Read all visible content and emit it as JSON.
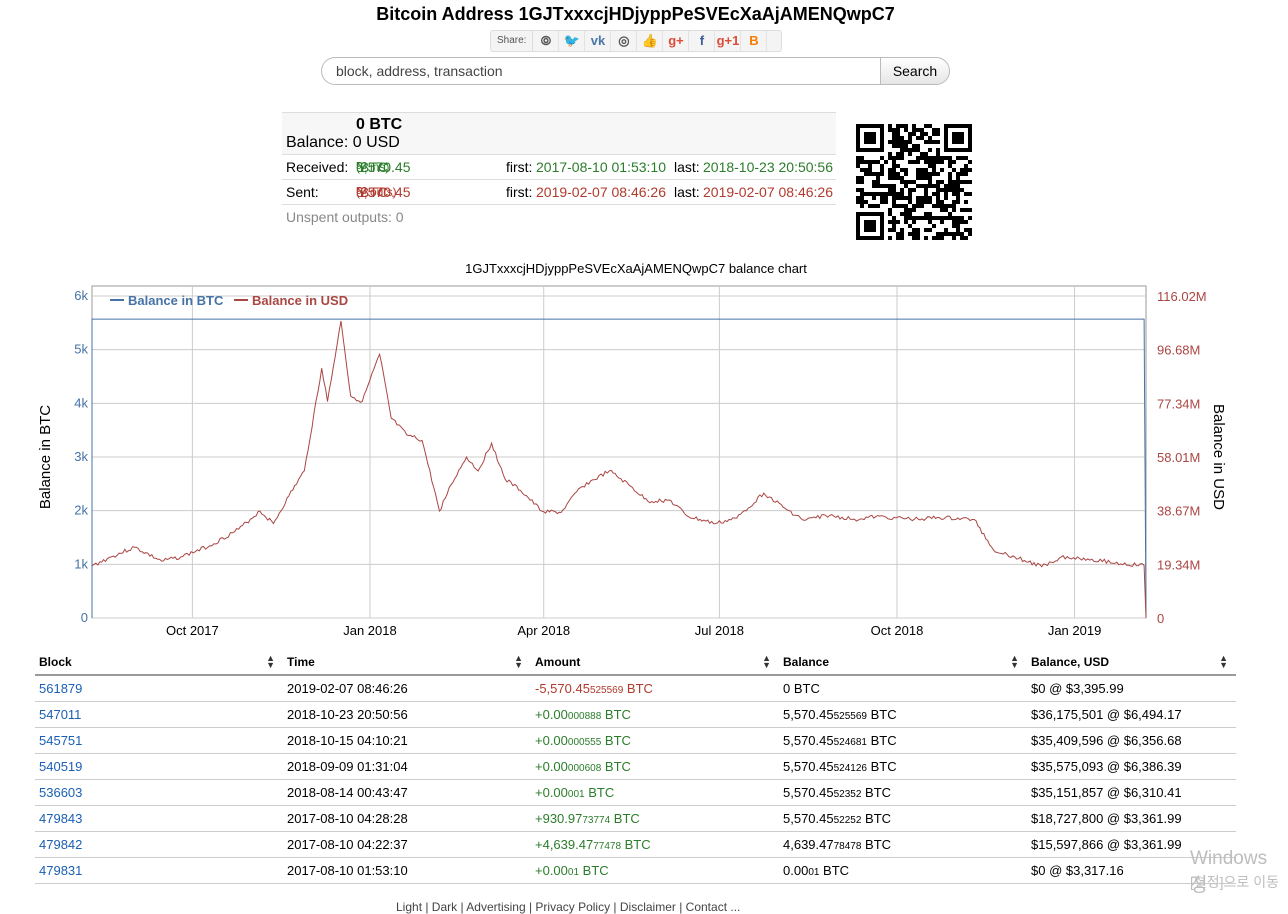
{
  "page": {
    "title": "Bitcoin Address 1GJTxxxcjHDjyppPeSVEcXaAjAMENQwpC7",
    "share_label": "Share:",
    "share_icons": [
      "reddit-icon",
      "twitter-icon",
      "vk-icon",
      "weibo-icon",
      "like-icon",
      "googleplus-icon",
      "facebook-icon",
      "googleplus-one-icon",
      "blogger-icon"
    ],
    "share_glyphs": [
      "⦾",
      "🐦",
      "vk",
      "◎",
      "👍",
      "g+",
      "f",
      "g+1",
      "B"
    ],
    "share_colors": [
      "#555",
      "#1da1f2",
      "#4a76a8",
      "#555",
      "#3b5998",
      "#dd4b39",
      "#3b5998",
      "#dd4b39",
      "#f57d00"
    ]
  },
  "search": {
    "placeholder": "block, address, transaction",
    "button": "Search"
  },
  "summary": {
    "balance_label": "Balance:",
    "balance_btc": "0 BTC",
    "balance_usd": "0 USD",
    "received_label": "Received:",
    "received_main": "5,570.45",
    "received_small": "53",
    "received_unit": " BTC",
    "received_ins": "(7 ins)",
    "received_first_label": "first:",
    "received_first": "2017-08-10 01:53:10",
    "received_last_label": "last:",
    "received_last": "2018-10-23 20:50:56",
    "sent_label": "Sent:",
    "sent_main": "5,570.45",
    "sent_small": "53",
    "sent_unit": " BTC",
    "sent_outs": "(7 outs)",
    "sent_first_label": "first:",
    "sent_first": "2019-02-07 08:46:26",
    "sent_last_label": "last:",
    "sent_last": "2019-02-07 08:46:26",
    "unspent": "Unspent outputs: 0"
  },
  "chart_data": {
    "type": "line",
    "title": "1GJTxxxcjHDjyppPeSVEcXaAjAMENQwpC7 balance chart",
    "ylabel_left": "Balance in BTC",
    "ylabel_right": "Balance in USD",
    "legend": [
      "Balance in BTC",
      "Balance in USD"
    ],
    "legend_position": "top-left",
    "colors": {
      "btc": "#4572a7",
      "usd": "#aa4643"
    },
    "x_ticks": [
      "Oct 2017",
      "Jan 2018",
      "Apr 2018",
      "Jul 2018",
      "Oct 2018",
      "Jan 2019"
    ],
    "x_tick_dates": [
      "2017-10-01",
      "2018-01-01",
      "2018-04-01",
      "2018-07-01",
      "2018-10-01",
      "2019-01-01"
    ],
    "x_range": [
      "2017-08-10",
      "2019-02-07"
    ],
    "y_left_ticks": [
      "0",
      "1k",
      "2k",
      "3k",
      "4k",
      "5k",
      "6k"
    ],
    "y_left_range": [
      0,
      6000
    ],
    "y_right_ticks": [
      "0",
      "19.34M",
      "38.67M",
      "58.01M",
      "77.34M",
      "96.68M",
      "116.02M"
    ],
    "y_right_range": [
      0,
      116020000
    ],
    "grid": true,
    "series": [
      {
        "name": "Balance in BTC",
        "axis": "left",
        "points": [
          [
            "2017-08-10",
            0.0
          ],
          [
            "2017-08-10",
            4639.48
          ],
          [
            "2017-08-10",
            5570.45
          ],
          [
            "2019-02-06",
            5570.45
          ],
          [
            "2019-02-07",
            0
          ]
        ]
      },
      {
        "name": "Balance in USD",
        "axis": "right",
        "points": [
          [
            "2017-08-10",
            18727800
          ],
          [
            "2017-08-20",
            22000000
          ],
          [
            "2017-09-01",
            25500000
          ],
          [
            "2017-09-15",
            20500000
          ],
          [
            "2017-09-25",
            22000000
          ],
          [
            "2017-10-10",
            26000000
          ],
          [
            "2017-10-25",
            32000000
          ],
          [
            "2017-11-05",
            38500000
          ],
          [
            "2017-11-12",
            34000000
          ],
          [
            "2017-11-20",
            44000000
          ],
          [
            "2017-11-28",
            53000000
          ],
          [
            "2017-12-07",
            90000000
          ],
          [
            "2017-12-10",
            78000000
          ],
          [
            "2017-12-17",
            107000000
          ],
          [
            "2017-12-22",
            80000000
          ],
          [
            "2017-12-28",
            78000000
          ],
          [
            "2018-01-06",
            95000000
          ],
          [
            "2018-01-12",
            72000000
          ],
          [
            "2018-01-20",
            66000000
          ],
          [
            "2018-01-28",
            64000000
          ],
          [
            "2018-02-06",
            38500000
          ],
          [
            "2018-02-12",
            48000000
          ],
          [
            "2018-02-20",
            58000000
          ],
          [
            "2018-02-26",
            53000000
          ],
          [
            "2018-03-05",
            63000000
          ],
          [
            "2018-03-12",
            50000000
          ],
          [
            "2018-03-20",
            46000000
          ],
          [
            "2018-03-31",
            38500000
          ],
          [
            "2018-04-10",
            38000000
          ],
          [
            "2018-04-20",
            47000000
          ],
          [
            "2018-05-05",
            53000000
          ],
          [
            "2018-05-15",
            48000000
          ],
          [
            "2018-05-25",
            42000000
          ],
          [
            "2018-06-05",
            42500000
          ],
          [
            "2018-06-15",
            36500000
          ],
          [
            "2018-06-29",
            34000000
          ],
          [
            "2018-07-10",
            36000000
          ],
          [
            "2018-07-24",
            45000000
          ],
          [
            "2018-08-05",
            39000000
          ],
          [
            "2018-08-14",
            35151857
          ],
          [
            "2018-08-25",
            37000000
          ],
          [
            "2018-09-09",
            35575093
          ],
          [
            "2018-09-20",
            36500000
          ],
          [
            "2018-10-10",
            35600000
          ],
          [
            "2018-10-23",
            36175501
          ],
          [
            "2018-11-10",
            35500000
          ],
          [
            "2018-11-20",
            24500000
          ],
          [
            "2018-12-01",
            22000000
          ],
          [
            "2018-12-15",
            18500000
          ],
          [
            "2018-12-25",
            22000000
          ],
          [
            "2019-01-10",
            21200000
          ],
          [
            "2019-01-25",
            19500000
          ],
          [
            "2019-02-06",
            18900000
          ],
          [
            "2019-02-07",
            0
          ]
        ]
      }
    ]
  },
  "table": {
    "headers": [
      "Block",
      "Time",
      "Amount",
      "Balance",
      "Balance, USD"
    ],
    "rows": [
      {
        "block": "561879",
        "time": "2019-02-07 08:46:26",
        "amount_main": "-5,570.45",
        "amount_small": "525569",
        "amount_unit": " BTC",
        "sign": "neg",
        "balance_main": "0 BTC",
        "balance_small": "",
        "balance_unit": "",
        "usd": "$0 @ $3,395.99"
      },
      {
        "block": "547011",
        "time": "2018-10-23 20:50:56",
        "amount_main": "+0.00",
        "amount_small": "000888",
        "amount_unit": " BTC",
        "sign": "pos",
        "balance_main": "5,570.45",
        "balance_small": "525569",
        "balance_unit": " BTC",
        "usd": "$36,175,501 @ $6,494.17"
      },
      {
        "block": "545751",
        "time": "2018-10-15 04:10:21",
        "amount_main": "+0.00",
        "amount_small": "000555",
        "amount_unit": " BTC",
        "sign": "pos",
        "balance_main": "5,570.45",
        "balance_small": "524681",
        "balance_unit": " BTC",
        "usd": "$35,409,596 @ $6,356.68"
      },
      {
        "block": "540519",
        "time": "2018-09-09 01:31:04",
        "amount_main": "+0.00",
        "amount_small": "000608",
        "amount_unit": " BTC",
        "sign": "pos",
        "balance_main": "5,570.45",
        "balance_small": "524126",
        "balance_unit": " BTC",
        "usd": "$35,575,093 @ $6,386.39"
      },
      {
        "block": "536603",
        "time": "2018-08-14 00:43:47",
        "amount_main": "+0.00",
        "amount_small": "001",
        "amount_unit": " BTC",
        "sign": "pos",
        "balance_main": "5,570.45",
        "balance_small": "52352",
        "balance_unit": " BTC",
        "usd": "$35,151,857 @ $6,310.41"
      },
      {
        "block": "479843",
        "time": "2017-08-10 04:28:28",
        "amount_main": "+930.97",
        "amount_small": "73774",
        "amount_unit": " BTC",
        "sign": "pos",
        "balance_main": "5,570.45",
        "balance_small": "52252",
        "balance_unit": " BTC",
        "usd": "$18,727,800 @ $3,361.99"
      },
      {
        "block": "479842",
        "time": "2017-08-10 04:22:37",
        "amount_main": "+4,639.47",
        "amount_small": "77478",
        "amount_unit": " BTC",
        "sign": "pos",
        "balance_main": "4,639.47",
        "balance_small": "78478",
        "balance_unit": " BTC",
        "usd": "$15,597,866 @ $3,361.99"
      },
      {
        "block": "479831",
        "time": "2017-08-10 01:53:10",
        "amount_main": "+0.00",
        "amount_small": "01",
        "amount_unit": " BTC",
        "sign": "pos",
        "balance_main": "0.00",
        "balance_small": "01",
        "balance_unit": " BTC",
        "usd": "$0 @ $3,317.16"
      }
    ]
  },
  "watermark": {
    "line1": "Windows 정",
    "line2": "[설정]으로 이동"
  },
  "footer": "Light | Dark | Advertising | Privacy Policy | Disclaimer | Contact ..."
}
